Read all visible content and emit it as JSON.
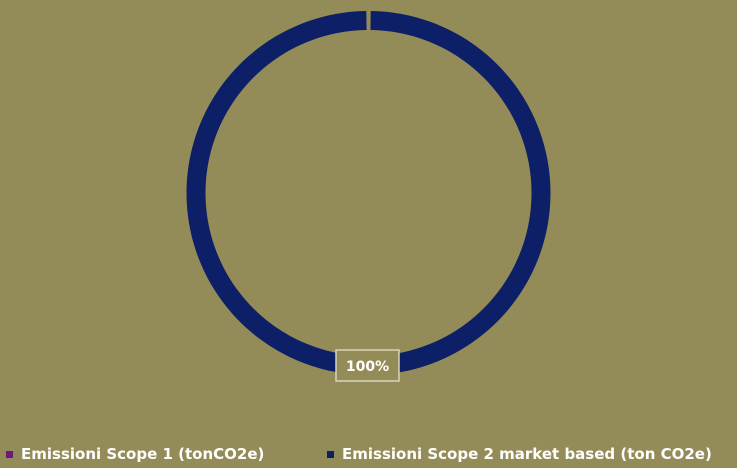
{
  "chart_data": {
    "type": "pie",
    "style": "donut",
    "series": [
      {
        "name": "Emissioni Scope 1 (tonCO2e)",
        "value": 0,
        "color": "#6a1b7a"
      },
      {
        "name": "Emissioni Scope 2 market based (ton CO2e)",
        "value": 100,
        "color": "#0d1f66"
      }
    ],
    "data_labels": [
      "",
      "100%"
    ],
    "legend_position": "bottom"
  },
  "colors": {
    "background": "#948c58",
    "label_border": "#d8d4bc"
  }
}
